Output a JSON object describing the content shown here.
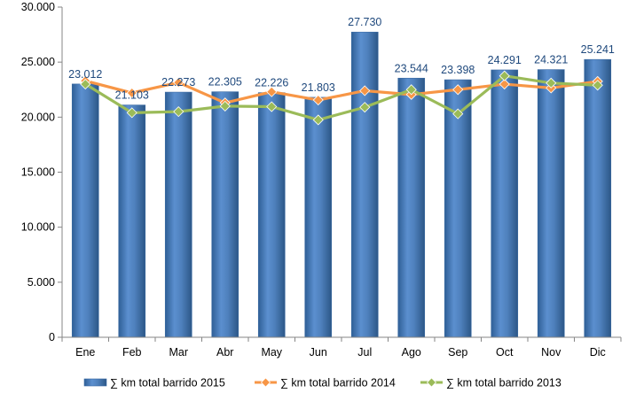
{
  "chart_data": {
    "type": "bar",
    "categories": [
      "Ene",
      "Feb",
      "Mar",
      "Abr",
      "May",
      "Jun",
      "Jul",
      "Ago",
      "Sep",
      "Oct",
      "Nov",
      "Dic"
    ],
    "ylim": [
      0,
      30000
    ],
    "yticks": [
      0,
      5000,
      10000,
      15000,
      20000,
      25000,
      30000
    ],
    "ytick_labels": [
      "0",
      "5.000",
      "10.000",
      "15.000",
      "20.000",
      "25.000",
      "30.000"
    ],
    "grid": false,
    "legend_position": "bottom",
    "series": [
      {
        "name": "∑ km total barrido 2015",
        "kind": "bar",
        "color": "#4f81bd",
        "values": [
          23012,
          21103,
          22273,
          22305,
          22226,
          21803,
          27730,
          23544,
          23398,
          24291,
          24321,
          25241
        ],
        "labels": [
          "23.012",
          "21.103",
          "22.273",
          "22.305",
          "22.226",
          "21.803",
          "27.730",
          "23.544",
          "23.398",
          "24.291",
          "24.321",
          "25.241"
        ]
      },
      {
        "name": "∑ km total barrido 2014",
        "kind": "line",
        "color": "#f79646",
        "values": [
          23300,
          22200,
          23150,
          21300,
          22300,
          21550,
          22400,
          22050,
          22500,
          23000,
          22650,
          23250
        ]
      },
      {
        "name": "∑ km total barrido 2013",
        "kind": "line",
        "color": "#9bbb59",
        "values": [
          23000,
          20400,
          20500,
          21000,
          20950,
          19750,
          20900,
          22500,
          20300,
          23750,
          23100,
          22900
        ]
      }
    ]
  }
}
